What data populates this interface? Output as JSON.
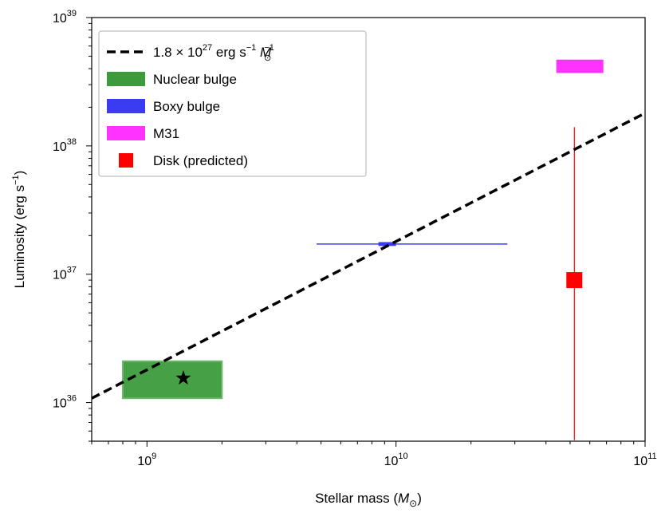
{
  "chart_data": {
    "type": "scatter",
    "xscale": "log",
    "yscale": "log",
    "xlim": [
      600000000.0,
      100000000000.0
    ],
    "ylim": [
      5e+35,
      1e+39
    ],
    "xlabel": "Stellar mass (M⊙)",
    "ylabel": "Luminosity (erg s⁻¹)",
    "x_ticks": [
      {
        "value": 1000000000.0,
        "mant": "10",
        "exp": "9"
      },
      {
        "value": 10000000000.0,
        "mant": "10",
        "exp": "10"
      },
      {
        "value": 100000000000.0,
        "mant": "10",
        "exp": "11"
      }
    ],
    "y_ticks": [
      {
        "value": 1e+36,
        "mant": "10",
        "exp": "36"
      },
      {
        "value": 1e+37,
        "mant": "10",
        "exp": "37"
      },
      {
        "value": 1e+38,
        "mant": "10",
        "exp": "38"
      },
      {
        "value": 1e+39,
        "mant": "10",
        "exp": "39"
      }
    ],
    "line": {
      "label": "1.8 × 10^27 erg s^-1 M⊙^-1",
      "coefficient": 1.8e+27,
      "color": "#000000",
      "style": "dashed"
    },
    "regions": [
      {
        "name": "Nuclear bulge",
        "x": [
          800000000.0,
          2000000000.0
        ],
        "y": [
          1.08e+36,
          2.1e+36
        ],
        "color": "#3d9b3d",
        "edge": "#65b665",
        "opacity": 0.95
      }
    ],
    "boxes": [
      {
        "name": "Boxy bulge",
        "x": [
          8500000000.0,
          10000000000.0
        ],
        "y": [
          1.66e+37,
          1.78e+37
        ],
        "color": "#3b3bf2",
        "xerr_range": [
          4800000000.0,
          28000000000.0
        ]
      },
      {
        "name": "M31",
        "x": [
          44000000000.0,
          68000000000.0
        ],
        "y": [
          3.7e+38,
          4.7e+38
        ],
        "color": "#ff33ff"
      }
    ],
    "star": {
      "x": 1400000000.0,
      "y": 1.55e+36,
      "color": "#000000"
    },
    "disk": {
      "name": "Disk (predicted)",
      "x": 52000000000.0,
      "y": 9e+36,
      "yerr_range": [
        5.1e+35,
        1.4e+38
      ],
      "color": "#ff0000"
    },
    "legend": {
      "placement": "top-left",
      "entries": [
        {
          "type": "dashed-line",
          "color": "#000000",
          "text_parts": [
            "1.8 × 10",
            "27",
            " erg s",
            "−1",
            " M",
            "⊙",
            "−1"
          ]
        },
        {
          "type": "rect",
          "color": "#3d9b3d",
          "label": "Nuclear bulge"
        },
        {
          "type": "rect",
          "color": "#3b3bf2",
          "label": "Boxy bulge"
        },
        {
          "type": "rect",
          "color": "#ff33ff",
          "label": "M31"
        },
        {
          "type": "square",
          "color": "#ff0000",
          "label": "Disk (predicted)"
        }
      ]
    }
  }
}
